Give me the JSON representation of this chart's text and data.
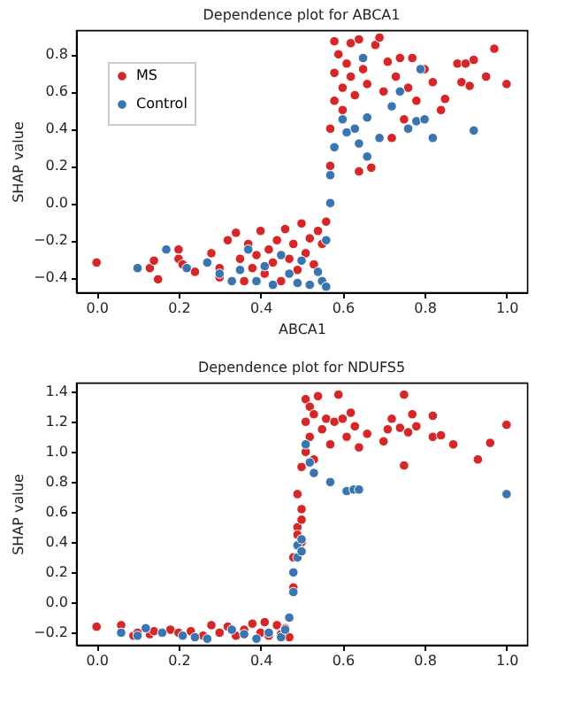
{
  "chart_data": [
    {
      "type": "scatter",
      "title": "Dependence plot for ABCA1",
      "xlabel": "ABCA1",
      "ylabel": "SHAP value",
      "legend": "top left",
      "marker": "circle",
      "grid": false,
      "xlim": [
        -0.05,
        1.05
      ],
      "ylim": [
        -0.48,
        0.93
      ],
      "xticks": [
        {
          "value": 0,
          "label": "0.0"
        },
        {
          "value": 0.2,
          "label": "0.2"
        },
        {
          "value": 0.4,
          "label": "0.4"
        },
        {
          "value": 0.6,
          "label": "0.6"
        },
        {
          "value": 0.8,
          "label": "0.8"
        },
        {
          "value": 1,
          "label": "1.0"
        }
      ],
      "yticks": [
        {
          "value": -0.4,
          "label": "−0.4"
        },
        {
          "value": -0.2,
          "label": "−0.2"
        },
        {
          "value": 0,
          "label": "0.0"
        },
        {
          "value": 0.2,
          "label": "0.2"
        },
        {
          "value": 0.4,
          "label": "0.4"
        },
        {
          "value": 0.6,
          "label": "0.6"
        },
        {
          "value": 0.8,
          "label": "0.8"
        }
      ],
      "series": [
        {
          "name": "MS",
          "color": "#d62728",
          "x": [
            0.0,
            0.13,
            0.14,
            0.15,
            0.2,
            0.2,
            0.21,
            0.24,
            0.28,
            0.3,
            0.3,
            0.32,
            0.34,
            0.35,
            0.36,
            0.37,
            0.38,
            0.39,
            0.4,
            0.41,
            0.42,
            0.43,
            0.44,
            0.45,
            0.46,
            0.47,
            0.48,
            0.49,
            0.5,
            0.51,
            0.52,
            0.53,
            0.54,
            0.55,
            0.56,
            0.57,
            0.57,
            0.58,
            0.58,
            0.58,
            0.59,
            0.6,
            0.6,
            0.61,
            0.62,
            0.62,
            0.63,
            0.64,
            0.64,
            0.65,
            0.66,
            0.67,
            0.68,
            0.69,
            0.7,
            0.71,
            0.72,
            0.73,
            0.74,
            0.75,
            0.76,
            0.77,
            0.78,
            0.8,
            0.82,
            0.84,
            0.85,
            0.88,
            0.89,
            0.9,
            0.91,
            0.92,
            0.95,
            0.97,
            1.0
          ],
          "values": [
            -0.32,
            -0.35,
            -0.31,
            -0.41,
            -0.25,
            -0.3,
            -0.33,
            -0.37,
            -0.27,
            -0.35,
            -0.4,
            -0.2,
            -0.16,
            -0.3,
            -0.42,
            -0.22,
            -0.35,
            -0.28,
            -0.15,
            -0.38,
            -0.25,
            -0.32,
            -0.2,
            -0.42,
            -0.14,
            -0.3,
            -0.22,
            -0.36,
            -0.11,
            -0.27,
            -0.19,
            -0.33,
            -0.15,
            -0.22,
            -0.1,
            0.2,
            0.4,
            0.55,
            0.7,
            0.87,
            0.8,
            0.62,
            0.5,
            0.75,
            0.86,
            0.68,
            0.58,
            0.88,
            0.17,
            0.72,
            0.64,
            0.19,
            0.85,
            0.89,
            0.6,
            0.76,
            0.35,
            0.68,
            0.78,
            0.45,
            0.62,
            0.78,
            0.55,
            0.72,
            0.65,
            0.5,
            0.56,
            0.75,
            0.65,
            0.75,
            0.63,
            0.77,
            0.68,
            0.83,
            0.64
          ]
        },
        {
          "name": "Control",
          "color": "#3b75af",
          "x": [
            0.1,
            0.17,
            0.22,
            0.27,
            0.3,
            0.33,
            0.35,
            0.37,
            0.39,
            0.41,
            0.43,
            0.45,
            0.47,
            0.49,
            0.5,
            0.52,
            0.54,
            0.55,
            0.56,
            0.56,
            0.57,
            0.57,
            0.58,
            0.6,
            0.61,
            0.63,
            0.64,
            0.65,
            0.66,
            0.66,
            0.69,
            0.72,
            0.74,
            0.76,
            0.78,
            0.79,
            0.8,
            0.82,
            0.92
          ],
          "values": [
            -0.35,
            -0.25,
            -0.35,
            -0.32,
            -0.38,
            -0.42,
            -0.36,
            -0.25,
            -0.42,
            -0.34,
            -0.44,
            -0.28,
            -0.38,
            -0.43,
            -0.31,
            -0.44,
            -0.37,
            -0.42,
            -0.45,
            -0.2,
            0.0,
            0.15,
            0.3,
            0.45,
            0.38,
            0.4,
            0.32,
            0.78,
            0.25,
            0.46,
            0.35,
            0.52,
            0.6,
            0.4,
            0.44,
            0.72,
            0.45,
            0.35,
            0.39
          ]
        }
      ]
    },
    {
      "type": "scatter",
      "title": "Dependence plot for NDUFS5",
      "ylabel": "SHAP value",
      "legend": "top left",
      "marker": "circle",
      "grid": false,
      "xlim": [
        -0.05,
        1.05
      ],
      "ylim": [
        -0.28,
        1.46
      ],
      "xticks": [
        {
          "value": 0,
          "label": "0.0"
        },
        {
          "value": 0.2,
          "label": "0.2"
        },
        {
          "value": 0.4,
          "label": "0.4"
        },
        {
          "value": 0.6,
          "label": "0.6"
        },
        {
          "value": 0.8,
          "label": "0.8"
        },
        {
          "value": 1,
          "label": "1.0"
        }
      ],
      "yticks": [
        {
          "value": -0.2,
          "label": "−0.2"
        },
        {
          "value": 0,
          "label": "0.0"
        },
        {
          "value": 0.2,
          "label": "0.2"
        },
        {
          "value": 0.4,
          "label": "0.4"
        },
        {
          "value": 0.6,
          "label": "0.6"
        },
        {
          "value": 0.8,
          "label": "0.8"
        },
        {
          "value": 1,
          "label": "1.0"
        },
        {
          "value": 1.2,
          "label": "1.2"
        },
        {
          "value": 1.4,
          "label": "1.4"
        }
      ],
      "series": [
        {
          "name": "MS",
          "color": "#d62728",
          "x": [
            0.0,
            0.06,
            0.09,
            0.1,
            0.13,
            0.14,
            0.18,
            0.2,
            0.23,
            0.26,
            0.28,
            0.3,
            0.32,
            0.34,
            0.36,
            0.38,
            0.4,
            0.41,
            0.42,
            0.44,
            0.45,
            0.46,
            0.47,
            0.48,
            0.48,
            0.49,
            0.49,
            0.49,
            0.5,
            0.5,
            0.5,
            0.5,
            0.51,
            0.51,
            0.51,
            0.52,
            0.52,
            0.53,
            0.53,
            0.54,
            0.55,
            0.56,
            0.57,
            0.58,
            0.59,
            0.6,
            0.61,
            0.62,
            0.63,
            0.64,
            0.66,
            0.7,
            0.71,
            0.72,
            0.74,
            0.75,
            0.75,
            0.76,
            0.77,
            0.78,
            0.82,
            0.82,
            0.84,
            0.87,
            0.93,
            0.96,
            1.0
          ],
          "values": [
            -0.16,
            -0.15,
            -0.22,
            -0.2,
            -0.21,
            -0.19,
            -0.18,
            -0.2,
            -0.19,
            -0.22,
            -0.15,
            -0.2,
            -0.16,
            -0.22,
            -0.18,
            -0.14,
            -0.2,
            -0.13,
            -0.22,
            -0.15,
            -0.21,
            -0.17,
            -0.23,
            0.1,
            0.3,
            0.5,
            0.45,
            0.72,
            0.62,
            0.55,
            0.4,
            0.9,
            1.0,
            1.2,
            1.35,
            1.3,
            1.1,
            0.95,
            1.25,
            1.37,
            1.15,
            1.22,
            1.05,
            1.2,
            1.38,
            1.22,
            1.1,
            1.26,
            1.17,
            1.03,
            1.12,
            1.07,
            1.15,
            1.22,
            1.16,
            1.38,
            0.91,
            1.13,
            1.25,
            1.17,
            1.24,
            1.1,
            1.11,
            1.05,
            0.95,
            1.06,
            1.18
          ]
        },
        {
          "name": "Control",
          "color": "#3b75af",
          "x": [
            0.06,
            0.1,
            0.12,
            0.16,
            0.21,
            0.24,
            0.27,
            0.33,
            0.36,
            0.39,
            0.42,
            0.45,
            0.46,
            0.47,
            0.48,
            0.48,
            0.49,
            0.49,
            0.5,
            0.5,
            0.51,
            0.52,
            0.53,
            0.57,
            0.61,
            0.627,
            0.64,
            1.0
          ],
          "values": [
            -0.2,
            -0.22,
            -0.17,
            -0.2,
            -0.22,
            -0.23,
            -0.24,
            -0.18,
            -0.21,
            -0.24,
            -0.2,
            -0.23,
            -0.18,
            -0.1,
            0.07,
            0.2,
            0.3,
            0.38,
            0.42,
            0.34,
            1.05,
            0.93,
            0.86,
            0.8,
            0.74,
            0.75,
            0.75,
            0.72
          ]
        }
      ]
    }
  ]
}
